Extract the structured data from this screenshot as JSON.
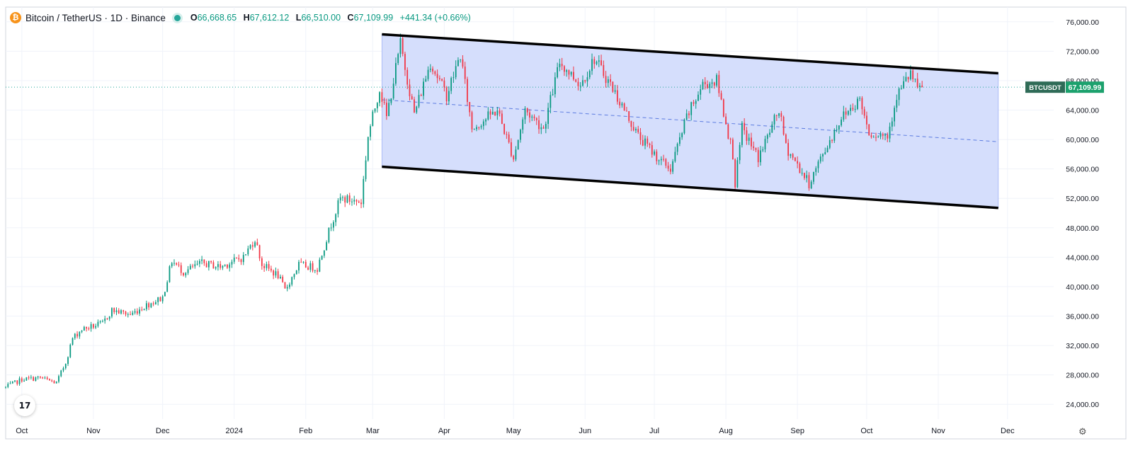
{
  "legend": {
    "symbol_logo": "₿",
    "title": "Bitcoin / TetherUS · 1D · Binance",
    "open_key": "O",
    "open": "66,668.65",
    "high_key": "H",
    "high": "67,612.12",
    "low_key": "L",
    "low": "66,510.00",
    "close_key": "C",
    "close": "67,109.99",
    "change": "+441.34 (+0.66%)"
  },
  "price_tag": {
    "symbol": "BTCUSDT",
    "value": "67,109.99"
  },
  "tv_logo": "17",
  "settings_icon": "gear-icon",
  "colors": {
    "up": "#089981",
    "down": "#f23645",
    "channel_fill": "#d3dcfc",
    "channel_line": "#000000",
    "midline": "#5b7be0",
    "tag_green": "#1ca16d",
    "tag_dark": "#2f6b57"
  },
  "chart_data": {
    "type": "candlestick",
    "title": "Bitcoin / TetherUS · 1D · Binance",
    "ylim": [
      22000,
      78000
    ],
    "y_ticks": [
      24000,
      28000,
      32000,
      36000,
      40000,
      44000,
      48000,
      52000,
      56000,
      60000,
      64000,
      68000,
      72000,
      76000
    ],
    "y_tick_labels": [
      "24,000.00",
      "28,000.00",
      "32,000.00",
      "36,000.00",
      "40,000.00",
      "44,000.00",
      "48,000.00",
      "52,000.00",
      "56,000.00",
      "60,000.00",
      "64,000.00",
      "68,000.00",
      "72,000.00",
      "76,000.00"
    ],
    "x_start": "2023-09-24",
    "x_end": "2024-12-21",
    "x_ticks": [
      {
        "date": "2023-10-01",
        "label": "Oct"
      },
      {
        "date": "2023-11-01",
        "label": "Nov"
      },
      {
        "date": "2023-12-01",
        "label": "Dec"
      },
      {
        "date": "2024-01-01",
        "label": "2024"
      },
      {
        "date": "2024-02-01",
        "label": "Feb"
      },
      {
        "date": "2024-03-01",
        "label": "Mar"
      },
      {
        "date": "2024-04-01",
        "label": "Apr"
      },
      {
        "date": "2024-05-01",
        "label": "May"
      },
      {
        "date": "2024-06-01",
        "label": "Jun"
      },
      {
        "date": "2024-07-01",
        "label": "Jul"
      },
      {
        "date": "2024-08-01",
        "label": "Aug"
      },
      {
        "date": "2024-09-01",
        "label": "Sep"
      },
      {
        "date": "2024-10-01",
        "label": "Oct"
      },
      {
        "date": "2024-11-01",
        "label": "Nov"
      },
      {
        "date": "2024-12-01",
        "label": "Dec"
      }
    ],
    "last_price": 67109.99,
    "channel": {
      "upper": [
        {
          "date": "2024-03-05",
          "price": 74300
        },
        {
          "date": "2024-11-27",
          "price": 69000
        }
      ],
      "lower": [
        {
          "date": "2024-03-05",
          "price": 56300
        },
        {
          "date": "2024-11-27",
          "price": 50700
        }
      ],
      "mid": [
        {
          "date": "2024-03-05",
          "price": 65400
        },
        {
          "date": "2024-11-27",
          "price": 59700
        }
      ]
    },
    "closes": [
      {
        "date": "2023-09-24",
        "price": 26300
      },
      {
        "date": "2023-10-01",
        "price": 27400
      },
      {
        "date": "2023-10-09",
        "price": 27600
      },
      {
        "date": "2023-10-16",
        "price": 26900
      },
      {
        "date": "2023-10-20",
        "price": 29700
      },
      {
        "date": "2023-10-23",
        "price": 33000
      },
      {
        "date": "2023-10-27",
        "price": 34200
      },
      {
        "date": "2023-11-05",
        "price": 35000
      },
      {
        "date": "2023-11-09",
        "price": 36800
      },
      {
        "date": "2023-11-17",
        "price": 36200
      },
      {
        "date": "2023-11-24",
        "price": 37500
      },
      {
        "date": "2023-12-01",
        "price": 38500
      },
      {
        "date": "2023-12-05",
        "price": 43500
      },
      {
        "date": "2023-12-10",
        "price": 42000
      },
      {
        "date": "2023-12-18",
        "price": 43200
      },
      {
        "date": "2023-12-26",
        "price": 42700
      },
      {
        "date": "2024-01-05",
        "price": 44000
      },
      {
        "date": "2024-01-10",
        "price": 46500
      },
      {
        "date": "2024-01-13",
        "price": 43000
      },
      {
        "date": "2024-01-20",
        "price": 41500
      },
      {
        "date": "2024-01-23",
        "price": 39500
      },
      {
        "date": "2024-01-29",
        "price": 43000
      },
      {
        "date": "2024-02-06",
        "price": 42500
      },
      {
        "date": "2024-02-12",
        "price": 48500
      },
      {
        "date": "2024-02-16",
        "price": 52000
      },
      {
        "date": "2024-02-25",
        "price": 51500
      },
      {
        "date": "2024-02-28",
        "price": 60500
      },
      {
        "date": "2024-03-04",
        "price": 67000
      },
      {
        "date": "2024-03-07",
        "price": 63000
      },
      {
        "date": "2024-03-13",
        "price": 73000
      },
      {
        "date": "2024-03-19",
        "price": 63500
      },
      {
        "date": "2024-03-26",
        "price": 70500
      },
      {
        "date": "2024-04-02",
        "price": 66000
      },
      {
        "date": "2024-04-08",
        "price": 71500
      },
      {
        "date": "2024-04-13",
        "price": 61500
      },
      {
        "date": "2024-04-24",
        "price": 64000
      },
      {
        "date": "2024-05-01",
        "price": 57500
      },
      {
        "date": "2024-05-06",
        "price": 64000
      },
      {
        "date": "2024-05-14",
        "price": 61500
      },
      {
        "date": "2024-05-21",
        "price": 70500
      },
      {
        "date": "2024-05-30",
        "price": 67500
      },
      {
        "date": "2024-06-05",
        "price": 71000
      },
      {
        "date": "2024-06-12",
        "price": 67500
      },
      {
        "date": "2024-06-24",
        "price": 60500
      },
      {
        "date": "2024-07-04",
        "price": 57000
      },
      {
        "date": "2024-07-08",
        "price": 56000
      },
      {
        "date": "2024-07-15",
        "price": 63000
      },
      {
        "date": "2024-07-22",
        "price": 67500
      },
      {
        "date": "2024-07-28",
        "price": 68000
      },
      {
        "date": "2024-08-04",
        "price": 58000
      },
      {
        "date": "2024-08-05",
        "price": 54000
      },
      {
        "date": "2024-08-08",
        "price": 61500
      },
      {
        "date": "2024-08-15",
        "price": 57500
      },
      {
        "date": "2024-08-24",
        "price": 64000
      },
      {
        "date": "2024-08-27",
        "price": 59000
      },
      {
        "date": "2024-09-06",
        "price": 54000
      },
      {
        "date": "2024-09-12",
        "price": 58000
      },
      {
        "date": "2024-09-20",
        "price": 63000
      },
      {
        "date": "2024-09-28",
        "price": 65500
      },
      {
        "date": "2024-10-02",
        "price": 61000
      },
      {
        "date": "2024-10-10",
        "price": 60500
      },
      {
        "date": "2024-10-14",
        "price": 66000
      },
      {
        "date": "2024-10-20",
        "price": 69000
      },
      {
        "date": "2024-10-23",
        "price": 66700
      },
      {
        "date": "2024-10-25",
        "price": 67110
      }
    ]
  }
}
